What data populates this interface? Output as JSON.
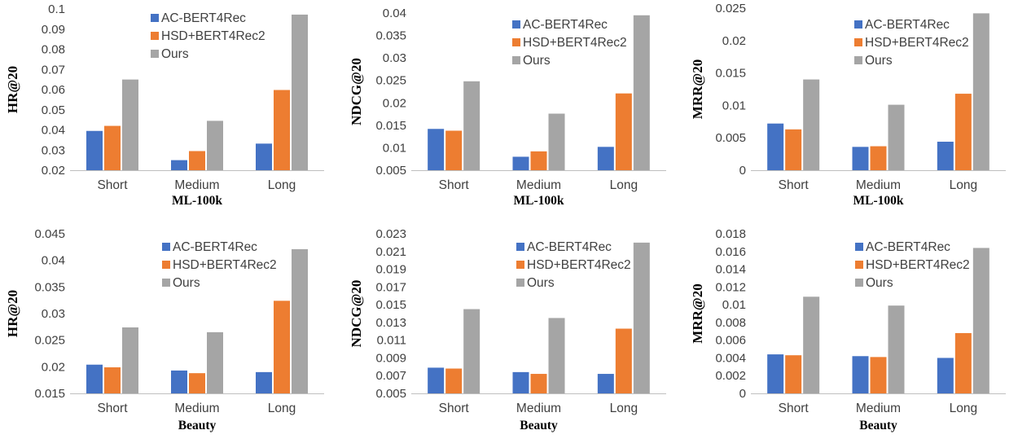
{
  "colors": {
    "AC-BERT4Rec": "#4472c4",
    "HSD+BERT4Rec2": "#ed7d31",
    "Ours": "#a5a5a5"
  },
  "chart_data": [
    {
      "type": "bar",
      "xlabel": "ML-100k",
      "ylabel": "HR@20",
      "categories": [
        "Short",
        "Medium",
        "Long"
      ],
      "ylim": [
        0.02,
        0.1
      ],
      "yticks": [
        "0.02",
        "0.03",
        "0.04",
        "0.05",
        "0.06",
        "0.07",
        "0.08",
        "0.09",
        "0.1"
      ],
      "legend": "top-center",
      "series": [
        {
          "name": "AC-BERT4Rec",
          "values": [
            0.0395,
            0.025,
            0.0332
          ]
        },
        {
          "name": "HSD+BERT4Rec2",
          "values": [
            0.042,
            0.0295,
            0.0598
          ]
        },
        {
          "name": "Ours",
          "values": [
            0.065,
            0.0445,
            0.0972
          ]
        }
      ]
    },
    {
      "type": "bar",
      "xlabel": "ML-100k",
      "ylabel": "NDCG@20",
      "categories": [
        "Short",
        "Medium",
        "Long"
      ],
      "ylim": [
        0.005,
        0.04
      ],
      "yticks": [
        "0.005",
        "0.01",
        "0.015",
        "0.02",
        "0.025",
        "0.03",
        "0.035",
        "0.04"
      ],
      "legend": "top-center",
      "series": [
        {
          "name": "AC-BERT4Rec",
          "values": [
            0.0142,
            0.008,
            0.0102
          ]
        },
        {
          "name": "HSD+BERT4Rec2",
          "values": [
            0.0138,
            0.0092,
            0.0221
          ]
        },
        {
          "name": "Ours",
          "values": [
            0.0248,
            0.0176,
            0.0395
          ]
        }
      ]
    },
    {
      "type": "bar",
      "xlabel": "ML-100k",
      "ylabel": "MRR@20",
      "categories": [
        "Short",
        "Medium",
        "Long"
      ],
      "ylim": [
        0,
        0.025
      ],
      "yticks": [
        "0",
        "0.005",
        "0.01",
        "0.015",
        "0.02",
        "0.025"
      ],
      "legend": "top-center",
      "series": [
        {
          "name": "AC-BERT4Rec",
          "values": [
            0.0072,
            0.0036,
            0.0044
          ]
        },
        {
          "name": "HSD+BERT4Rec2",
          "values": [
            0.0063,
            0.0037,
            0.0118
          ]
        },
        {
          "name": "Ours",
          "values": [
            0.014,
            0.0101,
            0.0242
          ]
        }
      ]
    },
    {
      "type": "bar",
      "xlabel": "Beauty",
      "ylabel": "HR@20",
      "categories": [
        "Short",
        "Medium",
        "Long"
      ],
      "ylim": [
        0.015,
        0.045
      ],
      "yticks": [
        "0.015",
        "0.02",
        "0.025",
        "0.03",
        "0.035",
        "0.04",
        "0.045"
      ],
      "legend": "top-center",
      "series": [
        {
          "name": "AC-BERT4Rec",
          "values": [
            0.0204,
            0.0193,
            0.019
          ]
        },
        {
          "name": "HSD+BERT4Rec2",
          "values": [
            0.0199,
            0.0188,
            0.0324
          ]
        },
        {
          "name": "Ours",
          "values": [
            0.0274,
            0.0265,
            0.0421
          ]
        }
      ]
    },
    {
      "type": "bar",
      "xlabel": "Beauty",
      "ylabel": "NDCG@20",
      "categories": [
        "Short",
        "Medium",
        "Long"
      ],
      "ylim": [
        0.005,
        0.023
      ],
      "yticks": [
        "0.005",
        "0.007",
        "0.009",
        "0.011",
        "0.013",
        "0.015",
        "0.017",
        "0.019",
        "0.021",
        "0.023"
      ],
      "legend": "top-center",
      "series": [
        {
          "name": "AC-BERT4Rec",
          "values": [
            0.0079,
            0.0074,
            0.0072
          ]
        },
        {
          "name": "HSD+BERT4Rec2",
          "values": [
            0.0078,
            0.0072,
            0.0123
          ]
        },
        {
          "name": "Ours",
          "values": [
            0.0145,
            0.0135,
            0.022
          ]
        }
      ]
    },
    {
      "type": "bar",
      "xlabel": "Beauty",
      "ylabel": "MRR@20",
      "categories": [
        "Short",
        "Medium",
        "Long"
      ],
      "ylim": [
        0,
        0.018
      ],
      "yticks": [
        "0",
        "0.002",
        "0.004",
        "0.006",
        "0.008",
        "0.01",
        "0.012",
        "0.014",
        "0.016",
        "0.018"
      ],
      "legend": "top-center",
      "series": [
        {
          "name": "AC-BERT4Rec",
          "values": [
            0.0044,
            0.0042,
            0.004
          ]
        },
        {
          "name": "HSD+BERT4Rec2",
          "values": [
            0.0043,
            0.0041,
            0.0068
          ]
        },
        {
          "name": "Ours",
          "values": [
            0.0109,
            0.0099,
            0.0164
          ]
        }
      ]
    }
  ]
}
